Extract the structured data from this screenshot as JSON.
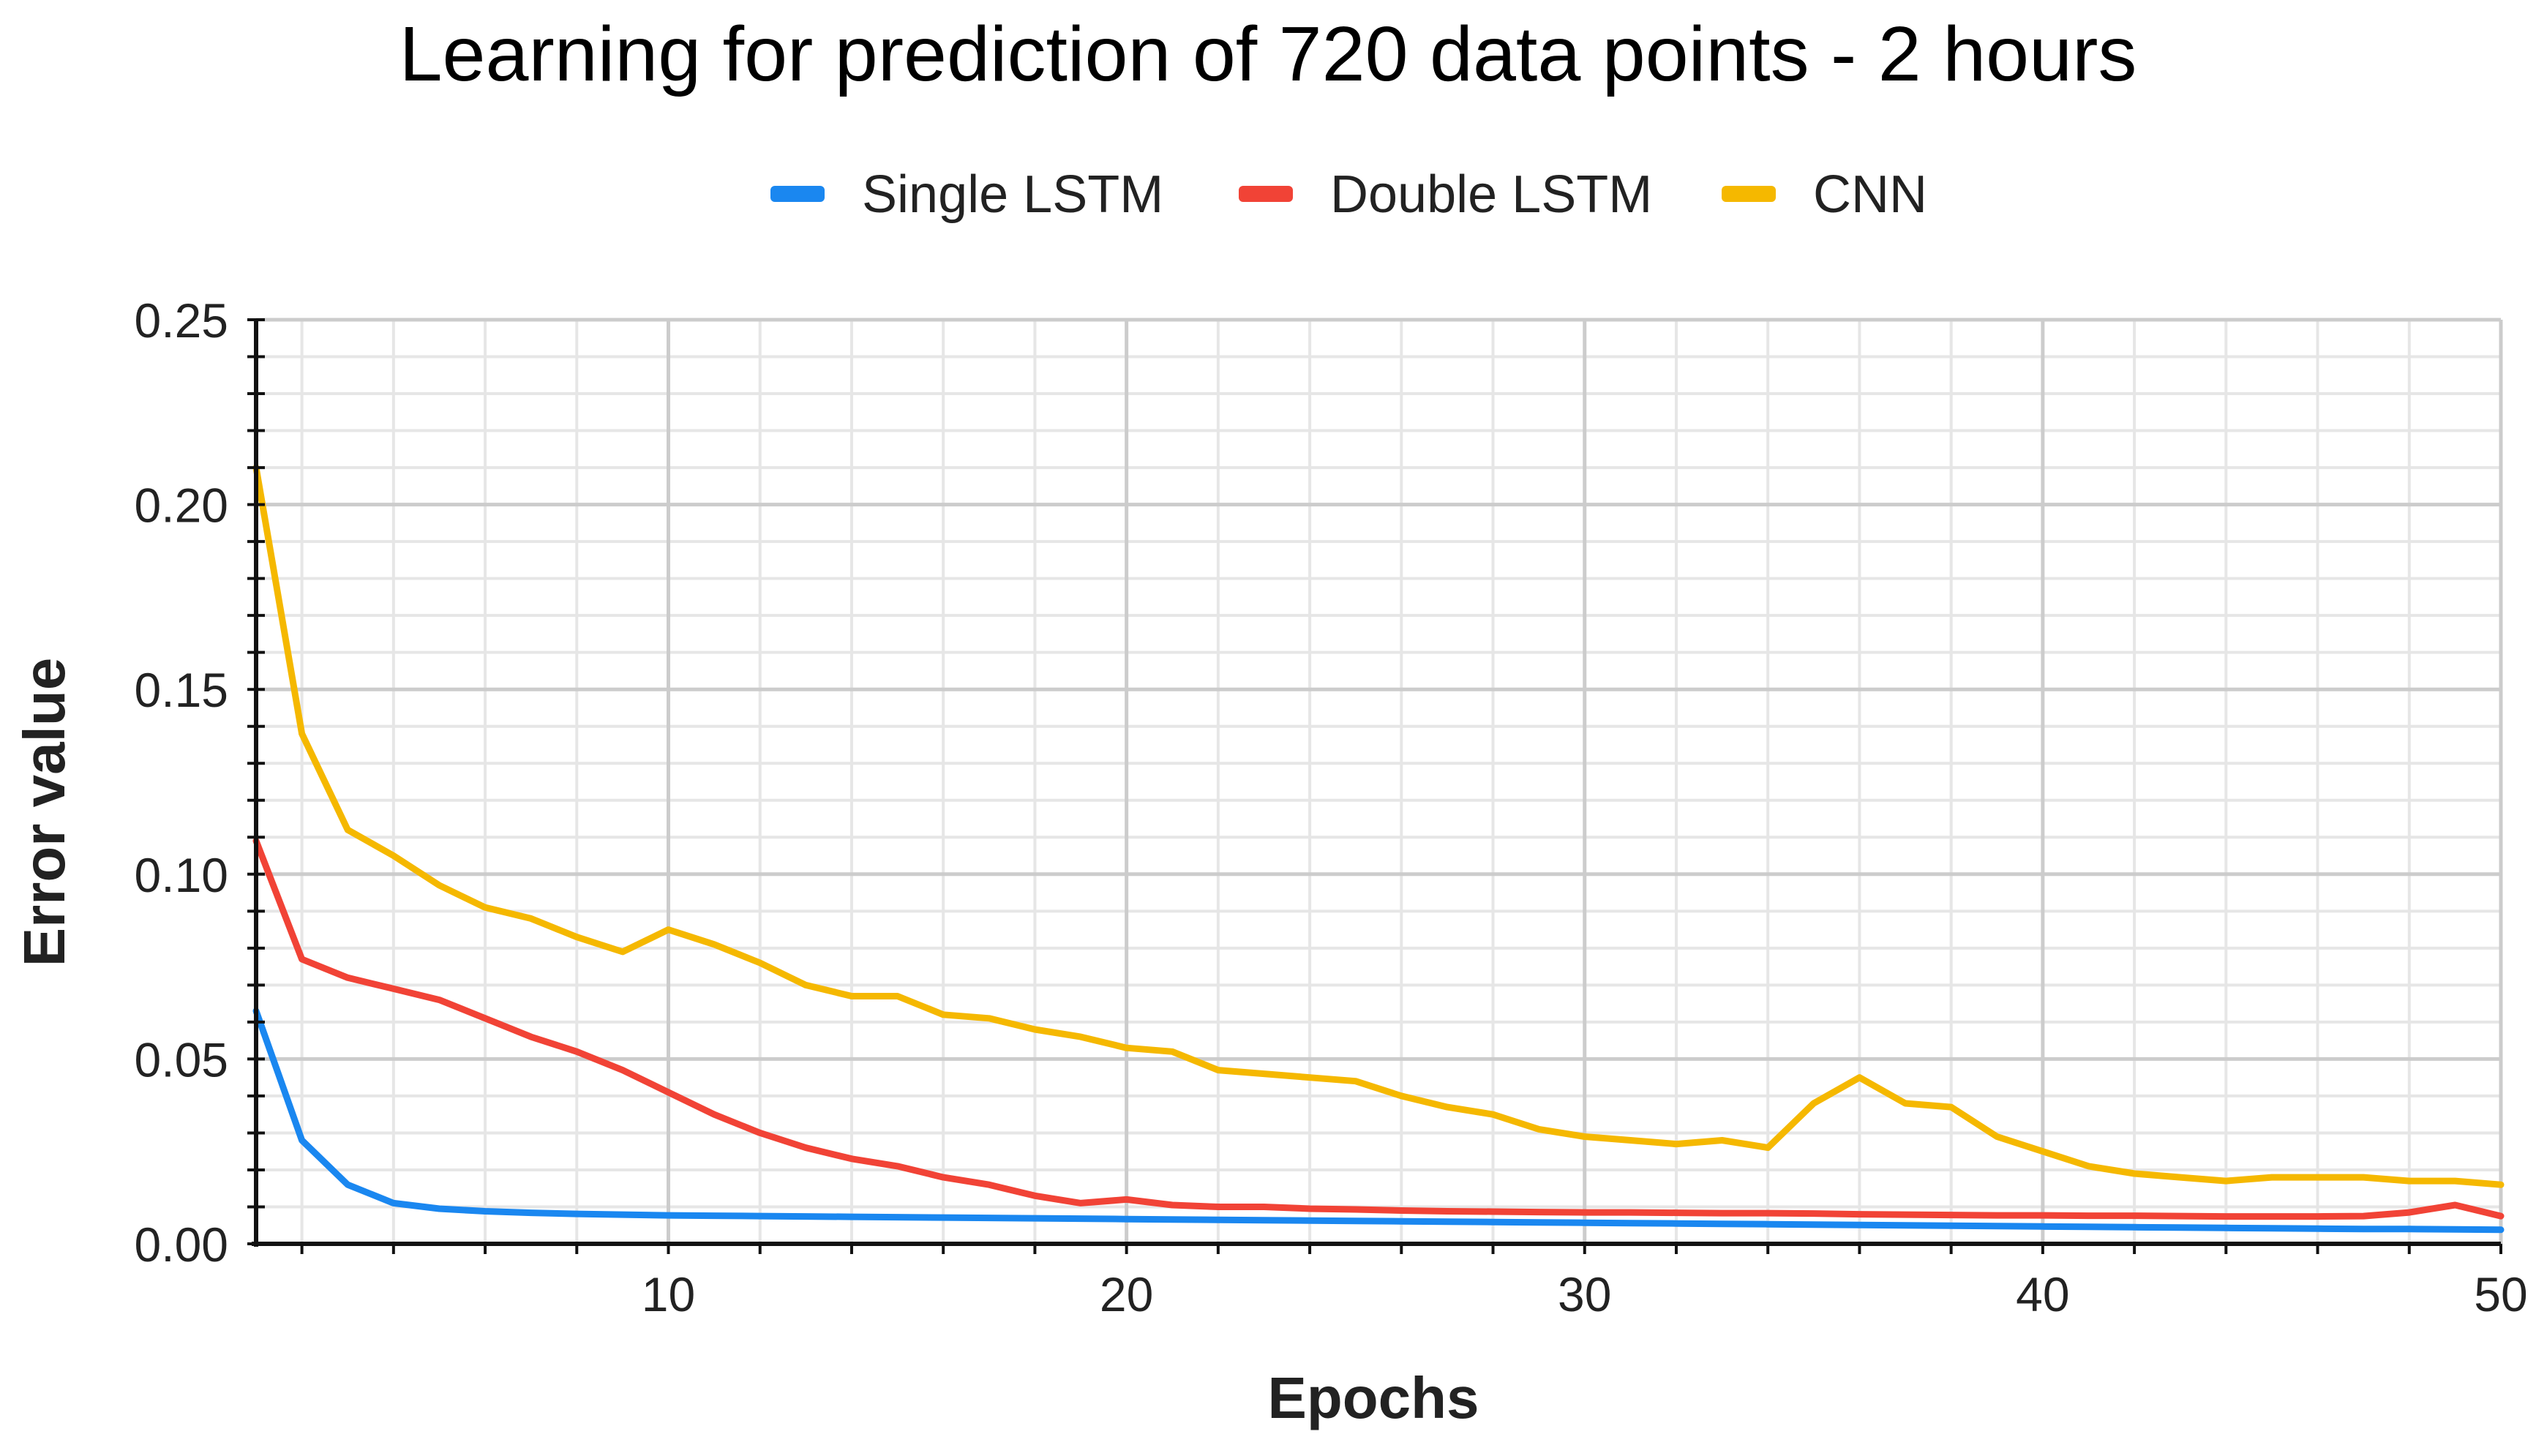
{
  "chart_data": {
    "type": "line",
    "title": "Learning for prediction of 720 data points - 2 hours",
    "xlabel": "Epochs",
    "ylabel": "Error value",
    "xlim": [
      1,
      50
    ],
    "ylim": [
      0,
      0.25
    ],
    "x_ticks": [
      10,
      20,
      30,
      40,
      50
    ],
    "x_tick_labels": [
      "10",
      "20",
      "30",
      "40",
      "50"
    ],
    "y_ticks": [
      0,
      0.05,
      0.1,
      0.15,
      0.2,
      0.25
    ],
    "y_tick_labels": [
      "0.00",
      "0.05",
      "0.10",
      "0.15",
      "0.20",
      "0.25"
    ],
    "grid": true,
    "minor_grid": true,
    "legend_position": "top-center",
    "colors": {
      "grid_major": "#cccccc",
      "grid_minor": "#e6e6e6",
      "axis": "#111111",
      "text": "#222222"
    },
    "x": [
      1,
      2,
      3,
      4,
      5,
      6,
      7,
      8,
      9,
      10,
      11,
      12,
      13,
      14,
      15,
      16,
      17,
      18,
      19,
      20,
      21,
      22,
      23,
      24,
      25,
      26,
      27,
      28,
      29,
      30,
      31,
      32,
      33,
      34,
      35,
      36,
      37,
      38,
      39,
      40,
      41,
      42,
      43,
      44,
      45,
      46,
      47,
      48,
      49,
      50
    ],
    "series": [
      {
        "name": "Single LSTM",
        "color": "#1a87f0",
        "values": [
          0.063,
          0.028,
          0.016,
          0.011,
          0.0095,
          0.0088,
          0.0084,
          0.0081,
          0.0079,
          0.0077,
          0.0076,
          0.0075,
          0.0074,
          0.0073,
          0.0072,
          0.0071,
          0.007,
          0.0069,
          0.0068,
          0.0067,
          0.0066,
          0.0065,
          0.0064,
          0.0063,
          0.0062,
          0.0061,
          0.006,
          0.0059,
          0.0058,
          0.0057,
          0.0056,
          0.0055,
          0.0054,
          0.0053,
          0.0052,
          0.0051,
          0.005,
          0.0049,
          0.0048,
          0.0047,
          0.0046,
          0.0045,
          0.0044,
          0.0043,
          0.0042,
          0.0041,
          0.004,
          0.004,
          0.0039,
          0.0038
        ]
      },
      {
        "name": "Double LSTM",
        "color": "#f14336",
        "values": [
          0.109,
          0.077,
          0.072,
          0.069,
          0.066,
          0.061,
          0.056,
          0.052,
          0.047,
          0.041,
          0.035,
          0.03,
          0.026,
          0.023,
          0.021,
          0.018,
          0.016,
          0.013,
          0.011,
          0.012,
          0.0105,
          0.01,
          0.01,
          0.0095,
          0.0093,
          0.009,
          0.0088,
          0.0087,
          0.0086,
          0.0085,
          0.0085,
          0.0084,
          0.0083,
          0.0083,
          0.0082,
          0.008,
          0.0079,
          0.0078,
          0.0077,
          0.0077,
          0.0076,
          0.0076,
          0.0075,
          0.0074,
          0.0074,
          0.0074,
          0.0075,
          0.0085,
          0.0105,
          0.0075
        ]
      },
      {
        "name": "CNN",
        "color": "#f5b800",
        "values": [
          0.21,
          0.138,
          0.112,
          0.105,
          0.097,
          0.091,
          0.088,
          0.083,
          0.079,
          0.085,
          0.081,
          0.076,
          0.07,
          0.067,
          0.067,
          0.062,
          0.061,
          0.058,
          0.056,
          0.053,
          0.052,
          0.047,
          0.046,
          0.045,
          0.044,
          0.04,
          0.037,
          0.035,
          0.031,
          0.029,
          0.028,
          0.027,
          0.028,
          0.026,
          0.038,
          0.045,
          0.038,
          0.037,
          0.029,
          0.025,
          0.021,
          0.019,
          0.018,
          0.017,
          0.018,
          0.018,
          0.018,
          0.017,
          0.017,
          0.016
        ]
      }
    ]
  }
}
